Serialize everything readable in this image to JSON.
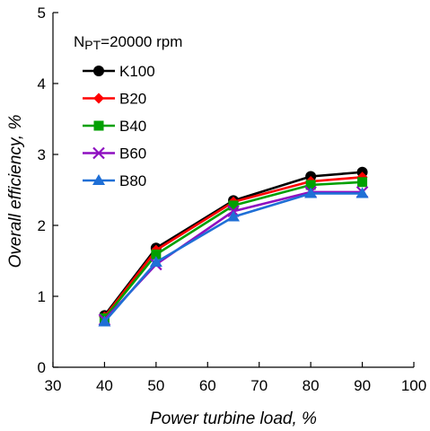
{
  "chart_data": {
    "type": "line",
    "xlabel": "Power turbine load, %",
    "ylabel": "Overall efficiency, %",
    "xlim": [
      30,
      100
    ],
    "ylim": [
      0,
      5
    ],
    "xticks": [
      "30",
      "40",
      "50",
      "60",
      "70",
      "80",
      "90",
      "100"
    ],
    "yticks": [
      "0",
      "1",
      "2",
      "3",
      "4",
      "5"
    ],
    "grid": false,
    "legend_placement": "top-left",
    "legend_title": {
      "prefix": "N",
      "subscript": "PT",
      "suffix": "=20000 rpm"
    },
    "x": [
      40,
      50,
      65,
      80,
      90
    ],
    "series": [
      {
        "name": "K100",
        "color": "#000000",
        "marker": "circle",
        "values": [
          0.73,
          1.68,
          2.35,
          2.69,
          2.75
        ]
      },
      {
        "name": "B20",
        "color": "#ff0000",
        "marker": "diamond",
        "values": [
          0.71,
          1.65,
          2.33,
          2.62,
          2.68
        ]
      },
      {
        "name": "B40",
        "color": "#00a000",
        "marker": "square",
        "values": [
          0.69,
          1.59,
          2.28,
          2.57,
          2.61
        ]
      },
      {
        "name": "B60",
        "color": "#8e0fc0",
        "marker": "x",
        "values": [
          0.67,
          1.45,
          2.2,
          2.47,
          2.47
        ]
      },
      {
        "name": "B80",
        "color": "#1f6fd6",
        "marker": "triangle",
        "values": [
          0.64,
          1.48,
          2.12,
          2.45,
          2.45
        ]
      }
    ]
  }
}
